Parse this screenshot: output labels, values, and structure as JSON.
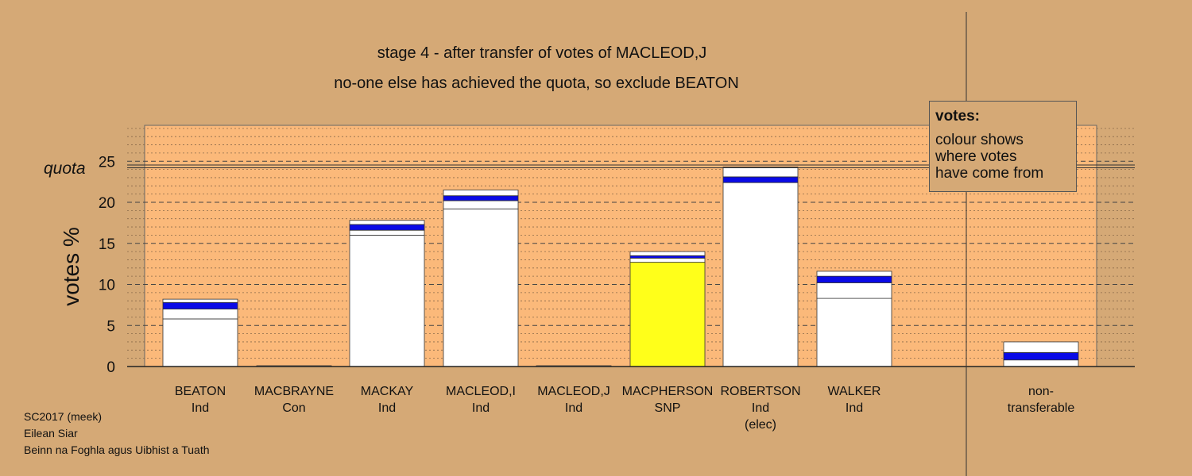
{
  "chart_data": {
    "type": "bar",
    "stacked": true,
    "title": "stage 4 - after transfer of votes of MACLEOD,J",
    "subtitle": "no-one else has achieved the quota, so exclude BEATON",
    "ylabel": "votes %",
    "ylim": [
      0,
      29.5
    ],
    "yticks": [
      "0",
      "5",
      "10",
      "15",
      "20",
      "25"
    ],
    "quota_label": "quota",
    "quota_value": 24.4,
    "grid": true,
    "categories": [
      {
        "name": "BEATON",
        "party": "Ind",
        "note": ""
      },
      {
        "name": "MACBRAYNE",
        "party": "Con",
        "note": ""
      },
      {
        "name": "MACKAY",
        "party": "Ind",
        "note": ""
      },
      {
        "name": "MACLEOD,I",
        "party": "Ind",
        "note": ""
      },
      {
        "name": "MACLEOD,J",
        "party": "Ind",
        "note": ""
      },
      {
        "name": "MACPHERSON",
        "party": "SNP",
        "note": ""
      },
      {
        "name": "ROBERTSON",
        "party": "Ind",
        "note": "(elec)"
      },
      {
        "name": "WALKER",
        "party": "Ind",
        "note": ""
      },
      {
        "name": "non-",
        "party": "transferable",
        "note": ""
      }
    ],
    "segments": [
      [
        {
          "v": 5.8,
          "c": "#ffffff"
        },
        {
          "v": 1.2,
          "c": "#ffffff"
        },
        {
          "v": 0.8,
          "c": "#0a0ae6"
        },
        {
          "v": 0.4,
          "c": "#ffffff"
        }
      ],
      [
        {
          "v": 0.1,
          "c": "#ffffff"
        }
      ],
      [
        {
          "v": 16.0,
          "c": "#ffffff"
        },
        {
          "v": 0.6,
          "c": "#ffffff"
        },
        {
          "v": 0.7,
          "c": "#0a0ae6"
        },
        {
          "v": 0.5,
          "c": "#ffffff"
        }
      ],
      [
        {
          "v": 19.2,
          "c": "#ffffff"
        },
        {
          "v": 1.0,
          "c": "#ffffff"
        },
        {
          "v": 0.6,
          "c": "#0a0ae6"
        },
        {
          "v": 0.7,
          "c": "#ffffff"
        }
      ],
      [
        {
          "v": 0.1,
          "c": "#ffffff"
        }
      ],
      [
        {
          "v": 12.7,
          "c": "#ffff1a"
        },
        {
          "v": 0.5,
          "c": "#ffffff"
        },
        {
          "v": 0.3,
          "c": "#0a0ae6"
        },
        {
          "v": 0.5,
          "c": "#ffffff"
        }
      ],
      [
        {
          "v": 22.4,
          "c": "#ffffff"
        },
        {
          "v": 0.7,
          "c": "#0a0ae6"
        },
        {
          "v": 1.2,
          "c": "#ffffff"
        }
      ],
      [
        {
          "v": 8.3,
          "c": "#ffffff"
        },
        {
          "v": 1.9,
          "c": "#ffffff"
        },
        {
          "v": 0.8,
          "c": "#0a0ae6"
        },
        {
          "v": 0.6,
          "c": "#ffffff"
        }
      ],
      [
        {
          "v": 0.8,
          "c": "#ffffff"
        },
        {
          "v": 0.9,
          "c": "#0a0ae6"
        },
        {
          "v": 1.3,
          "c": "#ffffff"
        }
      ]
    ],
    "colors": {
      "background": "#d5a976",
      "plot_bg": "#fbb97a",
      "transfer": "#0a0ae6",
      "snp": "#ffff1a"
    }
  },
  "legend": {
    "title": "votes:",
    "lines": [
      "colour shows",
      "where votes",
      "have come from"
    ]
  },
  "footer": {
    "line1": "SC2017 (meek)",
    "line2": "Eilean Siar",
    "line3": "Beinn na Foghla agus Uibhist a Tuath"
  }
}
